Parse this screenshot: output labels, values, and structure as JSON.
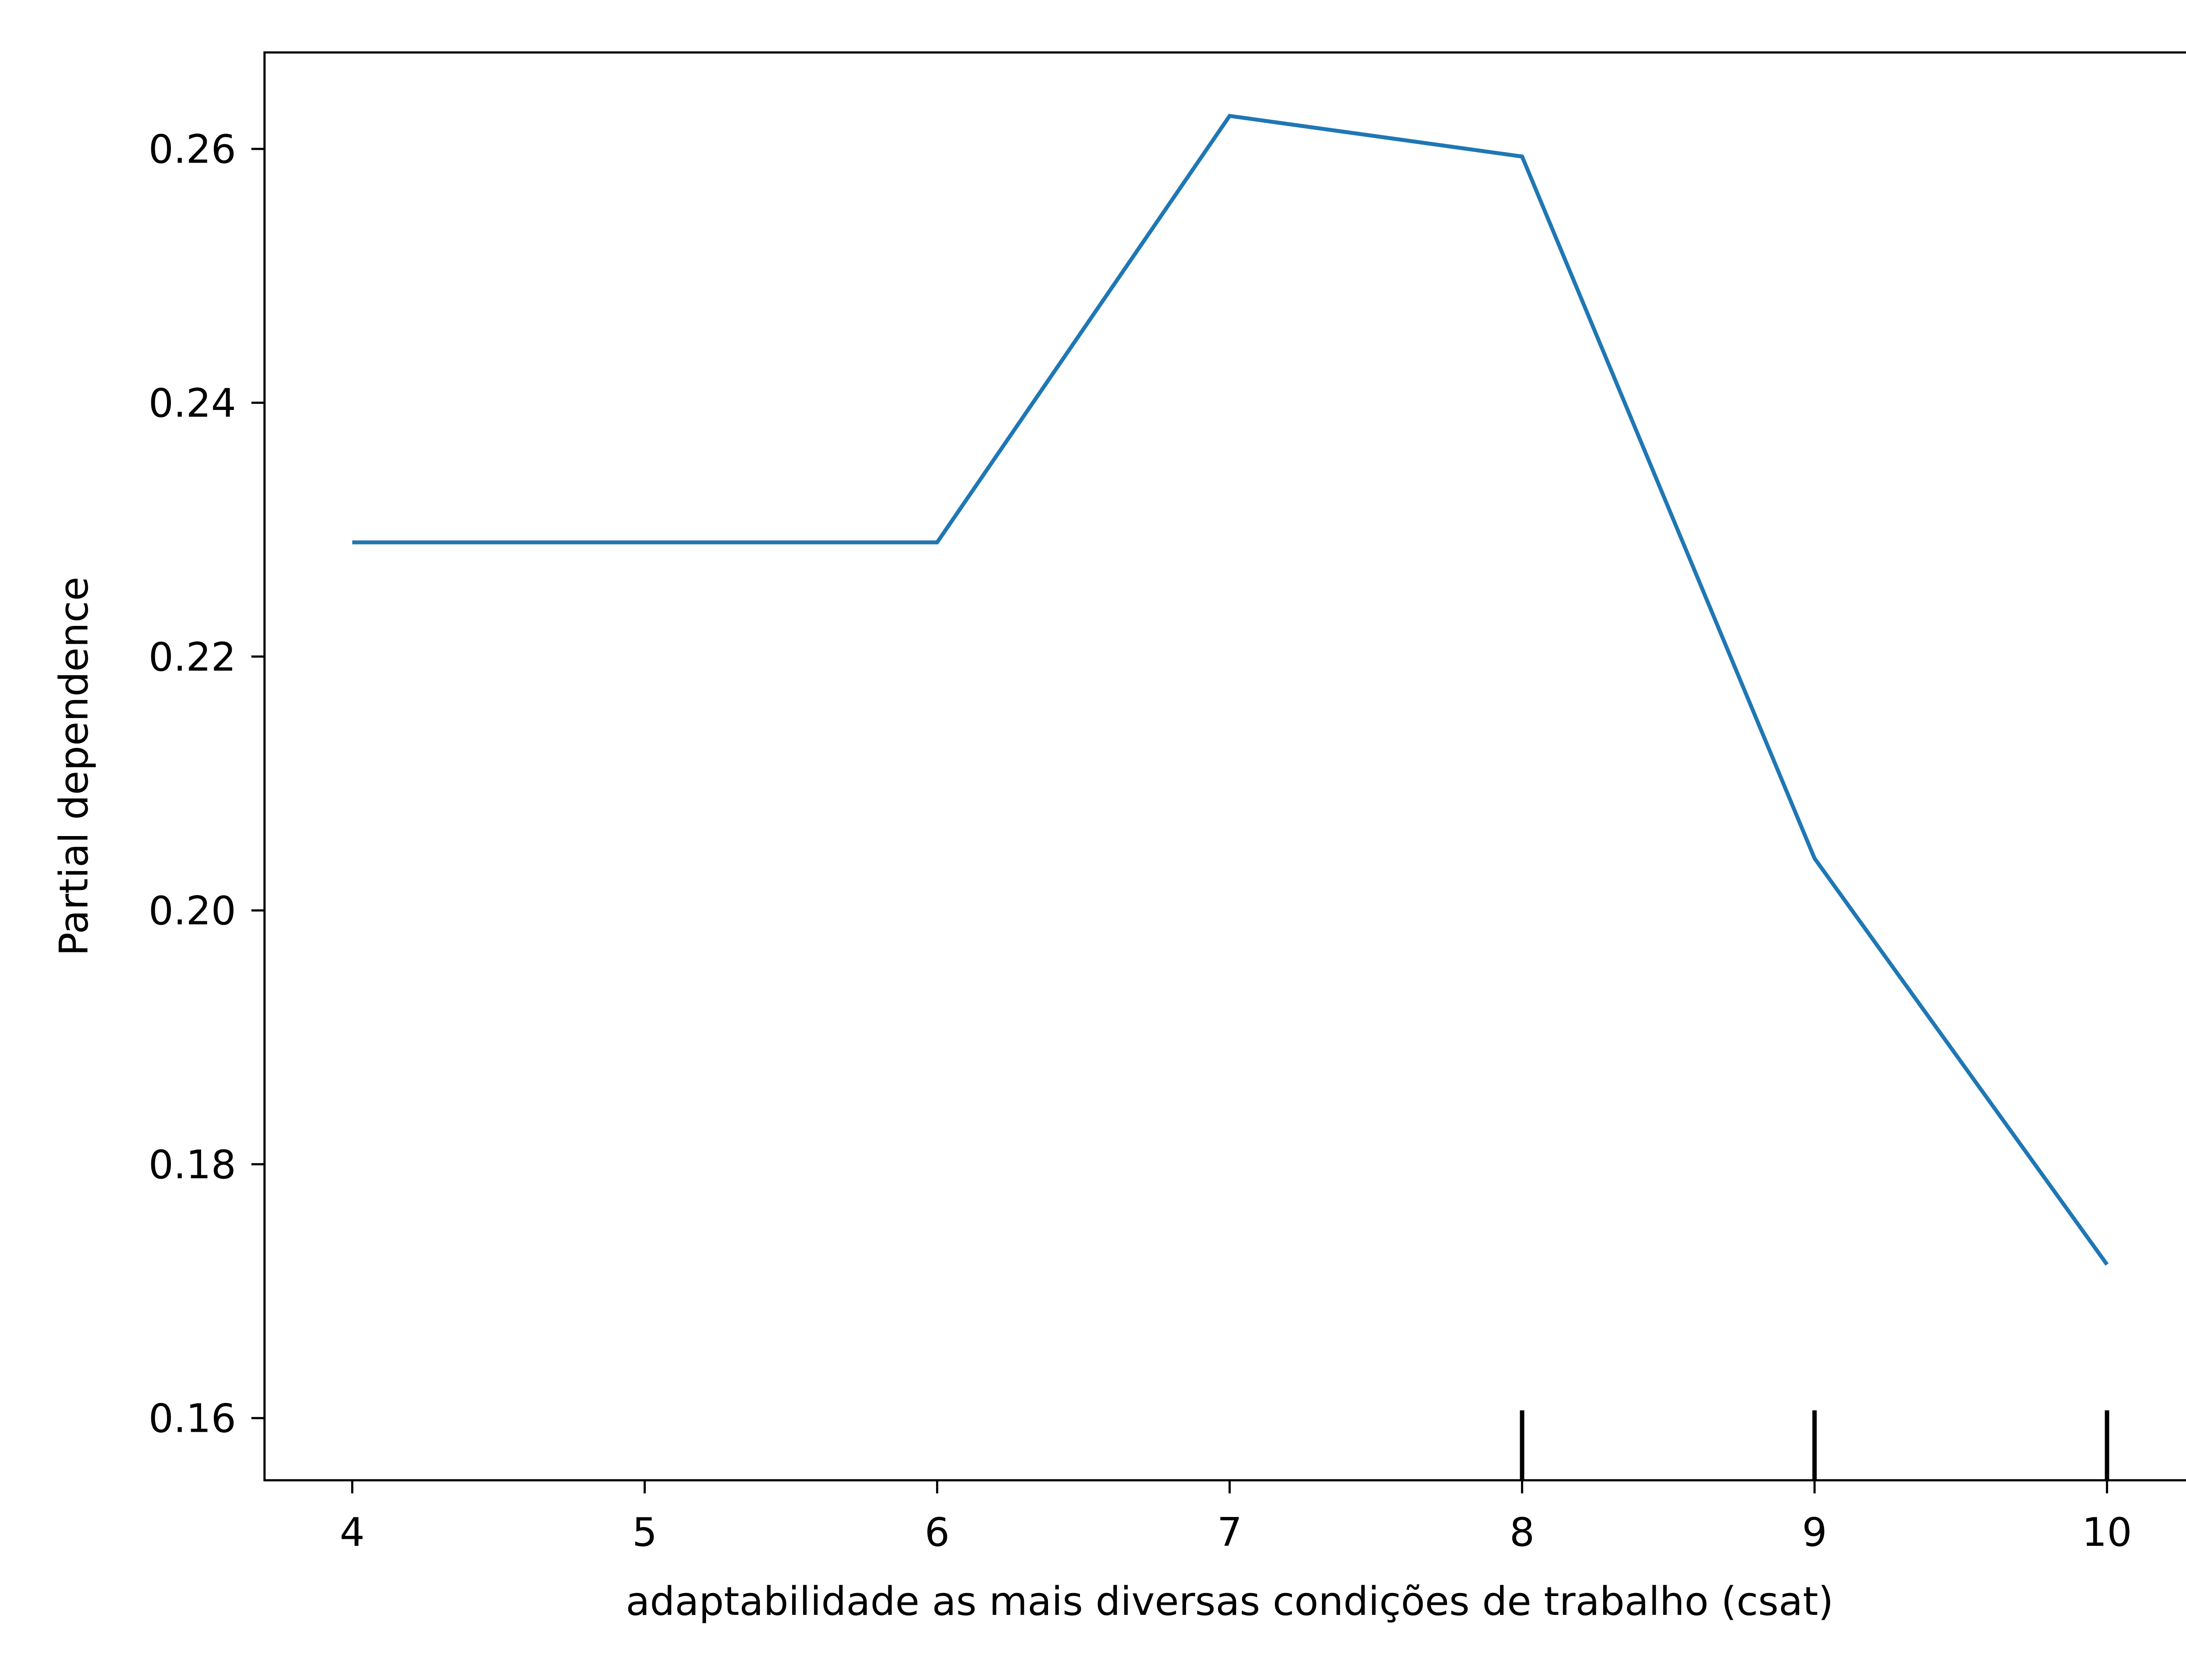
{
  "chart_data": {
    "type": "line",
    "title": "",
    "xlabel": "adaptabilidade as mais diversas condições de trabalho (csat)",
    "ylabel": "Partial dependence",
    "x": [
      4,
      5,
      6,
      7,
      8,
      9,
      10
    ],
    "series": [
      {
        "values": [
          0.229,
          0.229,
          0.229,
          0.2626,
          0.2594,
          0.2041,
          0.1721
        ],
        "color": "#1f77b4"
      }
    ],
    "xlim": [
      3.7,
      10.3
    ],
    "ylim": [
      0.1551,
      0.2676
    ],
    "xticks": [
      4,
      5,
      6,
      7,
      8,
      9,
      10
    ],
    "xtick_labels": [
      "4",
      "5",
      "6",
      "7",
      "8",
      "9",
      "10"
    ],
    "yticks": [
      0.16,
      0.18,
      0.2,
      0.22,
      0.24,
      0.26
    ],
    "ytick_labels": [
      "0.16",
      "0.18",
      "0.20",
      "0.22",
      "0.24",
      "0.26"
    ],
    "rug_x": [
      8,
      9,
      10
    ],
    "grid": false,
    "legend": "none"
  }
}
